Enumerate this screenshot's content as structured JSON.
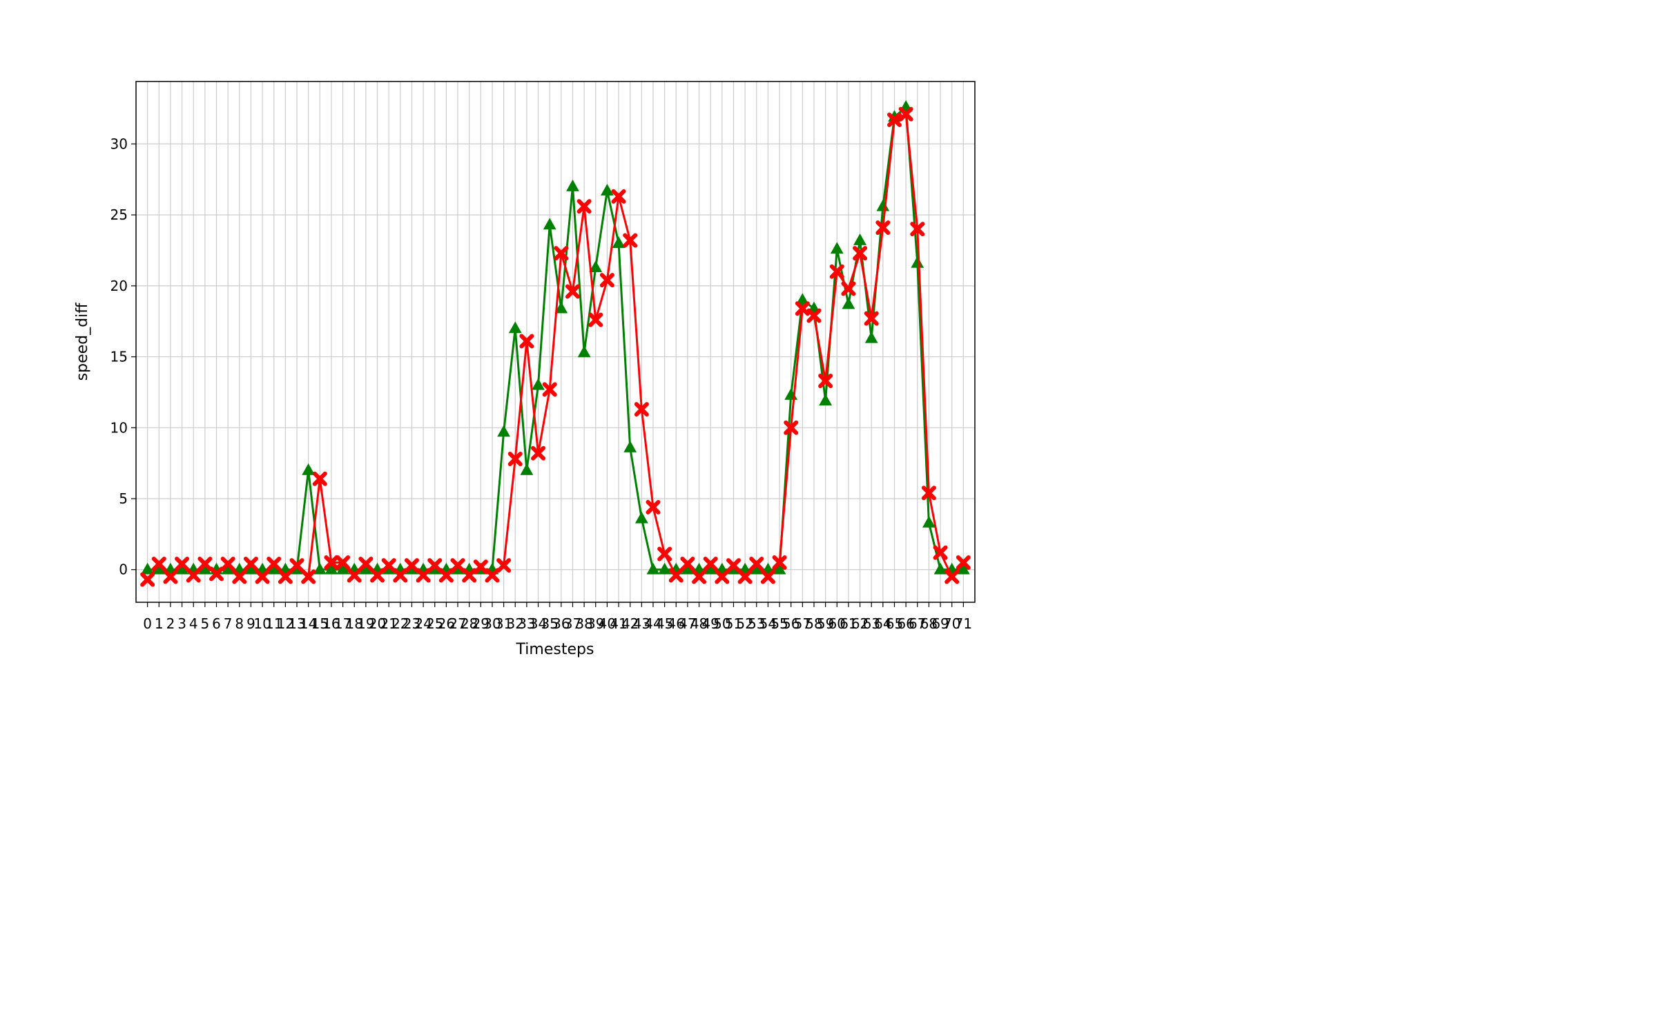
{
  "chart_data": {
    "type": "line",
    "title": "",
    "xlabel": "Timesteps",
    "ylabel": "speed_diff",
    "xlim": [
      -1,
      72
    ],
    "ylim": [
      -2.3,
      34.4
    ],
    "yticks": [
      0,
      5,
      10,
      15,
      20,
      25,
      30
    ],
    "grid": true,
    "legend": "none",
    "x": [
      0,
      1,
      2,
      3,
      4,
      5,
      6,
      7,
      8,
      9,
      10,
      11,
      12,
      13,
      14,
      15,
      16,
      17,
      18,
      19,
      20,
      21,
      22,
      23,
      24,
      25,
      26,
      27,
      28,
      29,
      30,
      31,
      32,
      33,
      34,
      35,
      36,
      37,
      38,
      39,
      40,
      41,
      42,
      43,
      44,
      45,
      46,
      47,
      48,
      49,
      50,
      51,
      52,
      53,
      54,
      55,
      56,
      57,
      58,
      59,
      60,
      61,
      62,
      63,
      64,
      65,
      66,
      67,
      68,
      69,
      70,
      71
    ],
    "series": [
      {
        "color": "#008000",
        "marker": "triangle",
        "values": [
          0,
          0,
          0,
          0,
          0,
          0,
          0,
          0,
          0,
          0,
          0,
          0,
          0,
          0,
          7.0,
          0,
          0,
          0,
          0,
          0,
          0,
          0,
          0,
          0,
          0,
          0,
          0,
          0,
          0,
          0,
          0,
          9.7,
          17.0,
          7.0,
          13.0,
          24.3,
          18.4,
          27.0,
          15.3,
          21.3,
          26.7,
          23.0,
          8.6,
          3.6,
          0,
          0,
          0,
          0,
          0,
          0,
          0,
          0,
          0,
          0,
          0,
          0,
          12.3,
          19.0,
          18.4,
          11.9,
          22.6,
          18.7,
          23.2,
          16.3,
          25.6,
          31.9,
          32.6,
          21.6,
          3.3,
          0,
          0,
          0
        ]
      },
      {
        "color": "#ff0000",
        "marker": "x",
        "values": [
          -0.7,
          0.4,
          -0.5,
          0.4,
          -0.4,
          0.4,
          -0.3,
          0.4,
          -0.5,
          0.4,
          -0.5,
          0.4,
          -0.5,
          0.3,
          -0.5,
          6.4,
          0.5,
          0.5,
          -0.4,
          0.4,
          -0.4,
          0.3,
          -0.4,
          0.3,
          -0.4,
          0.3,
          -0.4,
          0.3,
          -0.4,
          0.2,
          -0.4,
          0.3,
          7.8,
          16.1,
          8.2,
          12.7,
          22.3,
          19.6,
          25.6,
          17.6,
          20.4,
          26.3,
          23.2,
          11.3,
          4.4,
          1.1,
          -0.4,
          0.4,
          -0.5,
          0.4,
          -0.5,
          0.3,
          -0.5,
          0.4,
          -0.5,
          0.5,
          10.0,
          18.4,
          17.9,
          13.3,
          21.0,
          19.8,
          22.3,
          17.7,
          24.1,
          31.7,
          32.1,
          24.0,
          5.4,
          1.2,
          -0.5,
          0.5
        ]
      }
    ]
  }
}
